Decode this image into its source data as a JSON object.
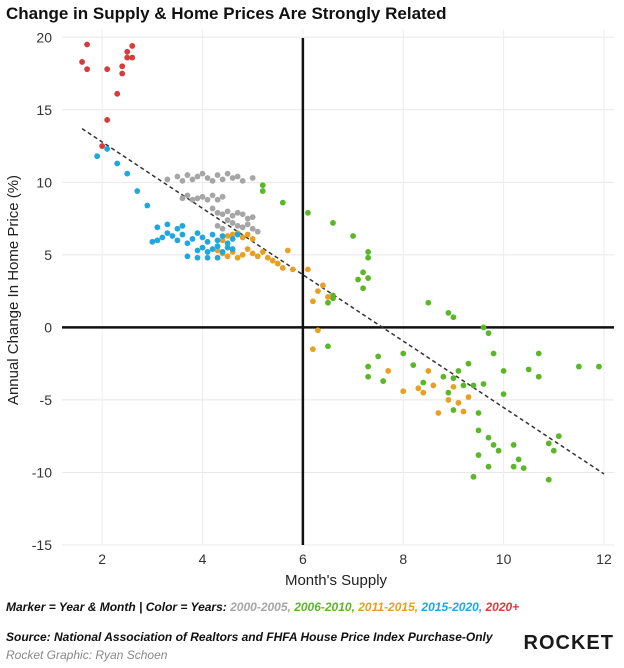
{
  "title": "Change in Supply & Home Prices Are Strongly Related",
  "legend": {
    "prefix": "Marker = Year & Month | Color = Years:",
    "items": [
      {
        "label": "2000-2005",
        "color": "#a6a6a6"
      },
      {
        "label": "2006-2010",
        "color": "#5ab827"
      },
      {
        "label": "2011-2015",
        "color": "#e8a020"
      },
      {
        "label": "2015-2020",
        "color": "#1fa7e0"
      },
      {
        "label": "2020+",
        "color": "#d93b3b"
      }
    ]
  },
  "footer": {
    "source": "Source: National Association of Realtors and FHFA House Price Index Purchase-Only",
    "credit": "Rocket Graphic: Ryan Schoen",
    "brand": "ROCKET"
  },
  "chart_data": {
    "type": "scatter",
    "xlabel": "Month's Supply",
    "ylabel": "Annual Change In Home Price (%)",
    "xlim": [
      1.2,
      12.2
    ],
    "ylim": [
      -15,
      20.5
    ],
    "xticks": [
      2,
      4,
      6,
      8,
      10,
      12
    ],
    "yticks": [
      -15,
      -10,
      -5,
      0,
      5,
      10,
      15,
      20
    ],
    "grid": true,
    "trendline": {
      "style": "dashed",
      "points": [
        [
          1.6,
          13.7
        ],
        [
          12.0,
          -10.1
        ]
      ]
    },
    "series": [
      {
        "name": "2000-2005",
        "color": "#a6a6a6",
        "points": [
          [
            3.3,
            10.2
          ],
          [
            3.5,
            10.4
          ],
          [
            3.6,
            10.1
          ],
          [
            3.7,
            10.5
          ],
          [
            3.8,
            10.2
          ],
          [
            3.9,
            10.4
          ],
          [
            4.0,
            10.6
          ],
          [
            4.1,
            10.3
          ],
          [
            4.2,
            10.1
          ],
          [
            4.3,
            10.5
          ],
          [
            4.4,
            10.2
          ],
          [
            4.5,
            10.6
          ],
          [
            4.6,
            10.3
          ],
          [
            4.7,
            10.4
          ],
          [
            4.8,
            10.1
          ],
          [
            5.0,
            10.3
          ],
          [
            3.6,
            8.9
          ],
          [
            3.7,
            9.1
          ],
          [
            3.8,
            8.8
          ],
          [
            3.9,
            8.9
          ],
          [
            4.0,
            9.0
          ],
          [
            4.1,
            8.8
          ],
          [
            4.2,
            9.1
          ],
          [
            4.3,
            8.8
          ],
          [
            4.4,
            9.0
          ],
          [
            4.2,
            8.2
          ],
          [
            4.3,
            7.9
          ],
          [
            4.4,
            7.8
          ],
          [
            4.5,
            8.0
          ],
          [
            4.6,
            7.7
          ],
          [
            4.7,
            7.9
          ],
          [
            4.8,
            7.8
          ],
          [
            4.9,
            7.5
          ],
          [
            5.0,
            7.6
          ],
          [
            4.5,
            7.4
          ],
          [
            4.6,
            7.2
          ],
          [
            4.7,
            7.0
          ],
          [
            4.8,
            6.9
          ],
          [
            4.9,
            7.1
          ],
          [
            5.0,
            6.8
          ],
          [
            5.1,
            6.6
          ],
          [
            4.4,
            6.8
          ],
          [
            4.3,
            7.0
          ]
        ]
      },
      {
        "name": "2006-2010",
        "color": "#5ab827",
        "points": [
          [
            5.2,
            9.8
          ],
          [
            5.2,
            9.4
          ],
          [
            5.6,
            8.6
          ],
          [
            6.1,
            7.9
          ],
          [
            6.6,
            7.2
          ],
          [
            7.0,
            6.3
          ],
          [
            7.3,
            5.2
          ],
          [
            7.3,
            4.8
          ],
          [
            7.2,
            3.8
          ],
          [
            7.1,
            3.3
          ],
          [
            7.3,
            3.4
          ],
          [
            7.2,
            2.7
          ],
          [
            6.6,
            2.0
          ],
          [
            6.6,
            2.2
          ],
          [
            6.5,
            1.7
          ],
          [
            6.5,
            -1.3
          ],
          [
            7.3,
            -2.7
          ],
          [
            7.5,
            -2.0
          ],
          [
            7.3,
            -3.4
          ],
          [
            7.6,
            -3.7
          ],
          [
            8.0,
            -1.8
          ],
          [
            8.2,
            -2.6
          ],
          [
            8.4,
            -3.8
          ],
          [
            8.5,
            1.7
          ],
          [
            8.8,
            -3.4
          ],
          [
            8.9,
            -4.5
          ],
          [
            9.0,
            -3.5
          ],
          [
            9.1,
            -3.0
          ],
          [
            9.2,
            -4.0
          ],
          [
            9.0,
            -5.7
          ],
          [
            9.3,
            -2.5
          ],
          [
            9.4,
            -4.0
          ],
          [
            9.5,
            -5.9
          ],
          [
            9.6,
            -3.9
          ],
          [
            9.5,
            -7.1
          ],
          [
            9.7,
            -7.6
          ],
          [
            9.8,
            -8.1
          ],
          [
            9.9,
            -8.5
          ],
          [
            9.5,
            -8.8
          ],
          [
            9.7,
            -9.6
          ],
          [
            9.4,
            -10.3
          ],
          [
            9.6,
            0.0
          ],
          [
            9.7,
            -0.4
          ],
          [
            9.8,
            -1.8
          ],
          [
            10.0,
            -3.0
          ],
          [
            10.0,
            -4.6
          ],
          [
            10.2,
            -9.6
          ],
          [
            10.3,
            -9.1
          ],
          [
            10.4,
            -9.7
          ],
          [
            10.2,
            -8.1
          ],
          [
            10.5,
            -2.9
          ],
          [
            10.7,
            -1.8
          ],
          [
            10.7,
            -3.4
          ],
          [
            10.9,
            -8.0
          ],
          [
            11.1,
            -7.5
          ],
          [
            11.0,
            -8.5
          ],
          [
            10.9,
            -10.5
          ],
          [
            11.5,
            -2.7
          ],
          [
            11.9,
            -2.7
          ],
          [
            9.0,
            0.7
          ],
          [
            8.9,
            1.0
          ]
        ]
      },
      {
        "name": "2011-2015",
        "color": "#e8a020",
        "points": [
          [
            4.3,
            5.3
          ],
          [
            4.4,
            5.1
          ],
          [
            4.5,
            4.9
          ],
          [
            4.6,
            5.2
          ],
          [
            4.7,
            4.8
          ],
          [
            4.8,
            5.0
          ],
          [
            4.9,
            5.4
          ],
          [
            5.0,
            5.1
          ],
          [
            5.1,
            4.9
          ],
          [
            5.2,
            5.2
          ],
          [
            5.3,
            4.8
          ],
          [
            5.4,
            4.6
          ],
          [
            5.5,
            4.4
          ],
          [
            5.6,
            4.1
          ],
          [
            5.7,
            5.3
          ],
          [
            5.8,
            4.0
          ],
          [
            4.5,
            6.3
          ],
          [
            4.6,
            6.4
          ],
          [
            4.7,
            6.5
          ],
          [
            4.8,
            6.2
          ],
          [
            4.9,
            6.4
          ],
          [
            5.0,
            6.1
          ],
          [
            4.4,
            6.0
          ],
          [
            6.1,
            4.0
          ],
          [
            6.2,
            1.8
          ],
          [
            6.3,
            2.5
          ],
          [
            6.4,
            2.9
          ],
          [
            6.5,
            2.1
          ],
          [
            6.3,
            -0.2
          ],
          [
            6.2,
            -1.5
          ],
          [
            7.7,
            -3.0
          ],
          [
            8.0,
            -4.4
          ],
          [
            8.3,
            -4.2
          ],
          [
            8.6,
            -4.0
          ],
          [
            8.7,
            -5.9
          ],
          [
            8.9,
            -5.0
          ],
          [
            9.0,
            -4.1
          ],
          [
            9.1,
            -5.2
          ],
          [
            9.2,
            -5.8
          ],
          [
            8.5,
            -3.0
          ],
          [
            9.3,
            -4.8
          ],
          [
            8.4,
            -4.5
          ]
        ]
      },
      {
        "name": "2015-2020",
        "color": "#1fa7e0",
        "points": [
          [
            1.9,
            11.8
          ],
          [
            2.1,
            12.3
          ],
          [
            2.3,
            11.3
          ],
          [
            2.5,
            10.6
          ],
          [
            2.7,
            9.4
          ],
          [
            2.9,
            8.4
          ],
          [
            3.0,
            5.9
          ],
          [
            3.1,
            6.0
          ],
          [
            3.2,
            6.2
          ],
          [
            3.3,
            6.5
          ],
          [
            3.4,
            6.3
          ],
          [
            3.5,
            6.0
          ],
          [
            3.5,
            6.8
          ],
          [
            3.6,
            6.4
          ],
          [
            3.7,
            5.8
          ],
          [
            3.8,
            6.1
          ],
          [
            3.9,
            6.5
          ],
          [
            4.0,
            6.2
          ],
          [
            4.1,
            5.9
          ],
          [
            4.2,
            6.4
          ],
          [
            4.3,
            6.0
          ],
          [
            4.4,
            6.3
          ],
          [
            4.5,
            5.8
          ],
          [
            4.6,
            6.1
          ],
          [
            4.7,
            6.4
          ],
          [
            3.1,
            6.9
          ],
          [
            3.3,
            7.1
          ],
          [
            3.6,
            7.0
          ],
          [
            3.9,
            5.3
          ],
          [
            4.0,
            5.5
          ],
          [
            4.1,
            5.2
          ],
          [
            4.2,
            5.4
          ],
          [
            4.3,
            5.6
          ],
          [
            4.4,
            5.2
          ],
          [
            4.5,
            5.5
          ],
          [
            3.7,
            4.9
          ],
          [
            3.9,
            4.8
          ],
          [
            4.1,
            4.8
          ],
          [
            4.3,
            4.8
          ],
          [
            4.6,
            5.4
          ]
        ]
      },
      {
        "name": "2020+",
        "color": "#d93b3b",
        "points": [
          [
            1.6,
            18.3
          ],
          [
            1.7,
            17.8
          ],
          [
            1.7,
            19.5
          ],
          [
            2.1,
            17.8
          ],
          [
            2.3,
            16.1
          ],
          [
            2.1,
            14.3
          ],
          [
            2.0,
            12.5
          ],
          [
            2.4,
            18.0
          ],
          [
            2.4,
            17.5
          ],
          [
            2.5,
            18.6
          ],
          [
            2.5,
            19.0
          ],
          [
            2.6,
            18.6
          ],
          [
            2.6,
            19.4
          ]
        ]
      }
    ]
  }
}
